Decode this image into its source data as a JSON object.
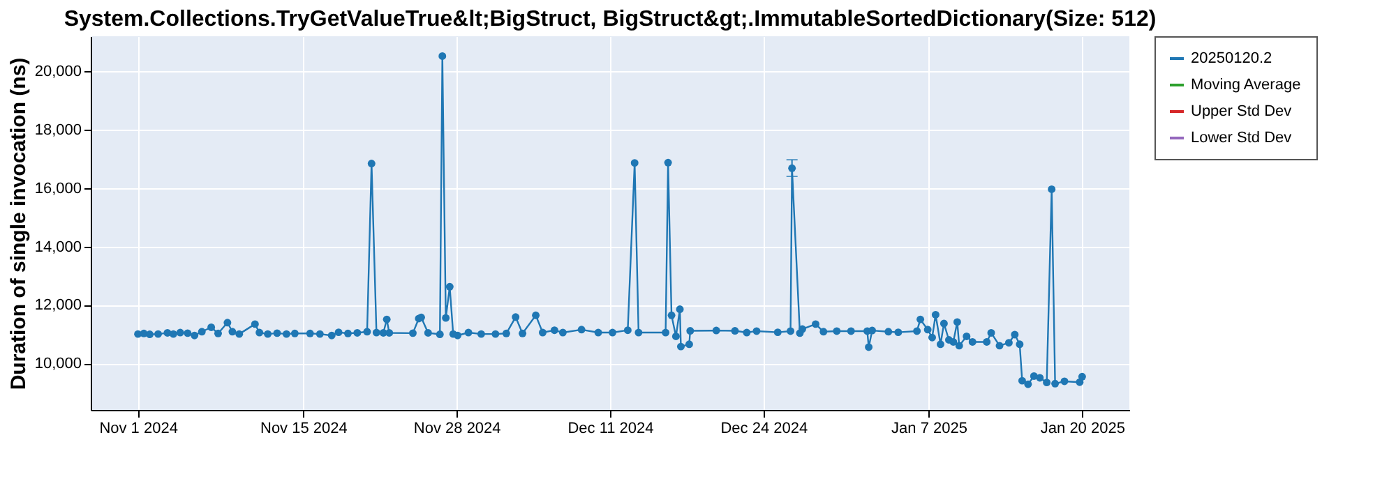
{
  "chart_data": {
    "type": "line",
    "title": "System.Collections.TryGetValueTrue&lt;BigStruct, BigStruct&gt;.ImmutableSortedDictionary(Size: 512)",
    "ylabel": "Duration of single invocation (ns)",
    "x": [
      "2024-11-01T00:00",
      "2024-11-01T12:00",
      "2024-11-02T00:00",
      "2024-11-02T17:00",
      "2024-11-03T12:00",
      "2024-11-04T00:00",
      "2024-11-04T14:00",
      "2024-11-05T05:00",
      "2024-11-05T19:00",
      "2024-11-06T10:00",
      "2024-11-07T05:00",
      "2024-11-07T19:00",
      "2024-11-08T14:00",
      "2024-11-09T00:00",
      "2024-11-09T14:00",
      "2024-11-10T22:00",
      "2024-11-11T07:00",
      "2024-11-12T00:00",
      "2024-11-12T19:00",
      "2024-11-13T14:00",
      "2024-11-14T07:00",
      "2024-11-15T14:00",
      "2024-11-16T10:00",
      "2024-11-17T10:00",
      "2024-11-18T00:00",
      "2024-11-18T19:00",
      "2024-11-19T14:00",
      "2024-11-20T10:00",
      "2024-11-20T19:00",
      "2024-11-21T05:00",
      "2024-11-21T19:00",
      "2024-11-22T02:00",
      "2024-11-22T07:00",
      "2024-11-24T07:00",
      "2024-11-24T19:00",
      "2024-11-25T00:00",
      "2024-11-25T14:00",
      "2024-11-26T14:00",
      "2024-11-26T19:00",
      "2024-11-27T02:00",
      "2024-11-27T10:00",
      "2024-11-27T17:00",
      "2024-11-28T02:00",
      "2024-11-29T00:00",
      "2024-11-30T02:00",
      "2024-12-01T07:00",
      "2024-12-02T05:00",
      "2024-12-03T00:00",
      "2024-12-03T14:00",
      "2024-12-04T17:00",
      "2024-12-05T07:00",
      "2024-12-06T07:00",
      "2024-12-07T00:00",
      "2024-12-08T14:00",
      "2024-12-10T00:00",
      "2024-12-11T05:00",
      "2024-12-12T12:00",
      "2024-12-13T02:00",
      "2024-12-13T10:00",
      "2024-12-15T17:00",
      "2024-12-15T22:00",
      "2024-12-16T05:00",
      "2024-12-16T14:00",
      "2024-12-16T22:00",
      "2024-12-17T00:00",
      "2024-12-17T17:00",
      "2024-12-17T19:00",
      "2024-12-20T00:00",
      "2024-12-21T14:00",
      "2024-12-22T14:00",
      "2024-12-23T10:00",
      "2024-12-25T05:00",
      "2024-12-26T07:00",
      "2024-12-26T10:00",
      "2024-12-27T02:00",
      "2024-12-27T07:00",
      "2024-12-28T10:00",
      "2024-12-29T02:00",
      "2024-12-30T05:00",
      "2024-12-31T10:00",
      "2025-01-01T19:00",
      "2025-01-01T22:00",
      "2025-01-02T05:00",
      "2025-01-03T14:00",
      "2025-01-04T10:00",
      "2025-01-06T00:00",
      "2025-01-06T07:00",
      "2025-01-06T22:00",
      "2025-01-07T07:00",
      "2025-01-07T14:00",
      "2025-01-08T00:00",
      "2025-01-08T07:00",
      "2025-01-08T17:00",
      "2025-01-09T02:00",
      "2025-01-09T10:00",
      "2025-01-09T14:00",
      "2025-01-10T05:00",
      "2025-01-10T17:00",
      "2025-01-11T22:00",
      "2025-01-12T07:00",
      "2025-01-13T00:00",
      "2025-01-13T19:00",
      "2025-01-14T07:00",
      "2025-01-14T17:00",
      "2025-01-14T22:00",
      "2025-01-15T10:00",
      "2025-01-15T22:00",
      "2025-01-16T10:00",
      "2025-01-17T00:00",
      "2025-01-17T10:00",
      "2025-01-17T17:00",
      "2025-01-18T12:00",
      "2025-01-19T19:00",
      "2025-01-20T00:00"
    ],
    "series": [
      {
        "name": "20250120.2",
        "color": "#1f77b4",
        "values": [
          11000,
          11020,
          10990,
          11000,
          11040,
          11000,
          11050,
          11030,
          10950,
          11080,
          11230,
          11020,
          11390,
          11080,
          11000,
          11340,
          11050,
          11000,
          11030,
          11000,
          11020,
          11020,
          11000,
          10950,
          11060,
          11020,
          11040,
          11080,
          16840,
          11050,
          11040,
          11500,
          11040,
          11030,
          11530,
          11570,
          11040,
          10990,
          20520,
          11550,
          12620,
          11000,
          10950,
          11050,
          11000,
          11000,
          11020,
          11580,
          11020,
          11640,
          11050,
          11130,
          11050,
          11150,
          11050,
          11050,
          11130,
          16860,
          11050,
          11050,
          16870,
          11640,
          10920,
          11850,
          10570,
          10650,
          11110,
          11120,
          11110,
          11050,
          11100,
          11060,
          11100,
          16680,
          11030,
          11170,
          11340,
          11080,
          11100,
          11100,
          11100,
          10550,
          11120,
          11080,
          11060,
          11100,
          11500,
          11150,
          10880,
          11660,
          10650,
          11360,
          10800,
          10730,
          11410,
          10600,
          10920,
          10730,
          10730,
          11040,
          10600,
          10700,
          10980,
          10650,
          9400,
          9280,
          9560,
          9500,
          9340,
          15960,
          9300,
          9380,
          9350,
          9540
        ],
        "errors": [
          null,
          null,
          null,
          null,
          null,
          null,
          null,
          null,
          null,
          null,
          null,
          null,
          null,
          null,
          null,
          null,
          null,
          null,
          null,
          null,
          null,
          null,
          null,
          null,
          null,
          null,
          null,
          null,
          null,
          null,
          null,
          null,
          null,
          null,
          null,
          null,
          null,
          null,
          null,
          null,
          null,
          null,
          null,
          null,
          null,
          null,
          null,
          null,
          null,
          null,
          null,
          null,
          null,
          null,
          null,
          null,
          null,
          null,
          null,
          null,
          null,
          null,
          null,
          null,
          null,
          null,
          null,
          null,
          null,
          null,
          null,
          null,
          null,
          [
            16400,
            16970
          ],
          null,
          null,
          null,
          null,
          null,
          null,
          null,
          null,
          null,
          null,
          null,
          null,
          null,
          null,
          null,
          null,
          null,
          null,
          null,
          null,
          null,
          null,
          null,
          null,
          null,
          null,
          null,
          null,
          null,
          null,
          null,
          null,
          null,
          null,
          null,
          null,
          null,
          null,
          null,
          null
        ]
      },
      {
        "name": "Moving Average",
        "color": "#2ca02c",
        "values": [
          null,
          null,
          null,
          null,
          null,
          null,
          null,
          null,
          null,
          null,
          null,
          null,
          null,
          null,
          null,
          null,
          null,
          null,
          null,
          null,
          null,
          null,
          null,
          null,
          null,
          null,
          null,
          null,
          null,
          null,
          null,
          null,
          null,
          null,
          null,
          null,
          null,
          null,
          null,
          null,
          null,
          null,
          null,
          null,
          null,
          null,
          null,
          null,
          null,
          null,
          null,
          null,
          null,
          null,
          null,
          null,
          null,
          null,
          null,
          null,
          null,
          null,
          null,
          null,
          null,
          null,
          null,
          null,
          null,
          null,
          null,
          null,
          null,
          null,
          null,
          null,
          null,
          null,
          null,
          null,
          null,
          null,
          null,
          null,
          null,
          null,
          null,
          null,
          null,
          null,
          null,
          null,
          null,
          null,
          null,
          null,
          null,
          null,
          null,
          null,
          null,
          null,
          null,
          null,
          null,
          null,
          null,
          null,
          null,
          null,
          null,
          null,
          null,
          null
        ]
      },
      {
        "name": "Upper Std Dev",
        "color": "#d62728",
        "values": [
          null,
          null,
          null,
          null,
          null,
          null,
          null,
          null,
          null,
          null,
          null,
          null,
          null,
          null,
          null,
          null,
          null,
          null,
          null,
          null,
          null,
          null,
          null,
          null,
          null,
          null,
          null,
          null,
          null,
          null,
          null,
          null,
          null,
          null,
          null,
          null,
          null,
          null,
          null,
          null,
          null,
          null,
          null,
          null,
          null,
          null,
          null,
          null,
          null,
          null,
          null,
          null,
          null,
          null,
          null,
          null,
          null,
          null,
          null,
          null,
          null,
          null,
          null,
          null,
          null,
          null,
          null,
          null,
          null,
          null,
          null,
          null,
          null,
          null,
          null,
          null,
          null,
          null,
          null,
          null,
          null,
          null,
          null,
          null,
          null,
          null,
          null,
          null,
          null,
          null,
          null,
          null,
          null,
          null,
          null,
          null,
          null,
          null,
          null,
          null,
          null,
          null,
          null,
          null,
          null,
          null,
          null,
          null,
          null,
          null,
          null,
          null,
          null,
          null
        ]
      },
      {
        "name": "Lower Std Dev",
        "color": "#9467bd",
        "values": [
          null,
          null,
          null,
          null,
          null,
          null,
          null,
          null,
          null,
          null,
          null,
          null,
          null,
          null,
          null,
          null,
          null,
          null,
          null,
          null,
          null,
          null,
          null,
          null,
          null,
          null,
          null,
          null,
          null,
          null,
          null,
          null,
          null,
          null,
          null,
          null,
          null,
          null,
          null,
          null,
          null,
          null,
          null,
          null,
          null,
          null,
          null,
          null,
          null,
          null,
          null,
          null,
          null,
          null,
          null,
          null,
          null,
          null,
          null,
          null,
          null,
          null,
          null,
          null,
          null,
          null,
          null,
          null,
          null,
          null,
          null,
          null,
          null,
          null,
          null,
          null,
          null,
          null,
          null,
          null,
          null,
          null,
          null,
          null,
          null,
          null,
          null,
          null,
          null,
          null,
          null,
          null,
          null,
          null,
          null,
          null,
          null,
          null,
          null,
          null,
          null,
          null,
          null,
          null,
          null,
          null,
          null,
          null,
          null,
          null,
          null,
          null,
          null,
          null
        ]
      }
    ],
    "xlim": [
      "2024-10-28",
      "2025-01-24"
    ],
    "xticks": [
      {
        "value": "2024-11-01",
        "label": "Nov 1 2024"
      },
      {
        "value": "2024-11-15",
        "label": "Nov 15 2024"
      },
      {
        "value": "2024-11-28",
        "label": "Nov 28 2024"
      },
      {
        "value": "2024-12-11",
        "label": "Dec 11 2024"
      },
      {
        "value": "2024-12-24",
        "label": "Dec 24 2024"
      },
      {
        "value": "2025-01-07",
        "label": "Jan 7 2025"
      },
      {
        "value": "2025-01-20",
        "label": "Jan 20 2025"
      }
    ],
    "ylim": [
      8400,
      21200
    ],
    "yticks": [
      {
        "value": 10000,
        "label": "10,000"
      },
      {
        "value": 12000,
        "label": "12,000"
      },
      {
        "value": 14000,
        "label": "14,000"
      },
      {
        "value": 16000,
        "label": "16,000"
      },
      {
        "value": 18000,
        "label": "18,000"
      },
      {
        "value": 20000,
        "label": "20,000"
      }
    ],
    "grid": true,
    "legend": "right",
    "marker": "circle",
    "line_style": "solid"
  }
}
